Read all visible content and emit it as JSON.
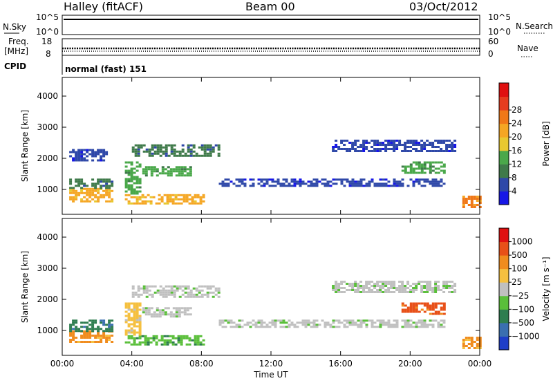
{
  "header": {
    "station": "Halley (fitACF)",
    "beam": "Beam 00",
    "date": "03/Oct/2012"
  },
  "strip": {
    "nsky_label": "N.Sky",
    "nsearch_label": "N.Search",
    "freq_label": "Freq.",
    "freq_unit": "[MHz]",
    "nave_label": "Nave",
    "cpid_label": "CPID",
    "cpid_value": "normal (fast) 151",
    "noise_ticks_left": [
      "10^5",
      "10^0"
    ],
    "noise_ticks_right": [
      "10^5",
      "10^0"
    ],
    "freq_ticks": [
      "18",
      "8"
    ],
    "nave_ticks": [
      "60",
      "0"
    ]
  },
  "chart_data": [
    {
      "type": "heatmap",
      "panel": "power",
      "ylabel": "Slant Range [km]",
      "ylim": [
        200,
        4600
      ],
      "yticks": [
        1000,
        2000,
        3000,
        4000
      ],
      "xlim": [
        0,
        24
      ],
      "colorbar": {
        "label": "Power [dB]",
        "ticks": [
          4,
          8,
          12,
          16,
          20,
          24,
          28
        ],
        "colors": [
          "#1717e6",
          "#2f48a8",
          "#3f7a4a",
          "#4aa84a",
          "#e8c830",
          "#f5a623",
          "#f07818",
          "#e63c1e",
          "#e01010"
        ]
      },
      "bands": [
        {
          "t0": 0.4,
          "t1": 2.8,
          "r0": 600,
          "r1": 1050,
          "level": 24
        },
        {
          "t0": 0.4,
          "t1": 2.8,
          "r0": 1050,
          "r1": 1350,
          "level": 12
        },
        {
          "t0": 3.6,
          "t1": 8.2,
          "r0": 550,
          "r1": 850,
          "level": 22
        },
        {
          "t0": 3.6,
          "t1": 4.4,
          "r0": 850,
          "r1": 1900,
          "level": 14
        },
        {
          "t0": 4.6,
          "t1": 7.4,
          "r0": 1450,
          "r1": 1750,
          "level": 14
        },
        {
          "t0": 4.0,
          "t1": 9.0,
          "r0": 2050,
          "r1": 2450,
          "level": 12
        },
        {
          "t0": 0.4,
          "t1": 2.6,
          "r0": 1950,
          "r1": 2300,
          "level": 6
        },
        {
          "t0": 9.0,
          "t1": 22.0,
          "r0": 1100,
          "r1": 1350,
          "level": 9
        },
        {
          "t0": 15.5,
          "t1": 22.5,
          "r0": 2200,
          "r1": 2600,
          "level": 6
        },
        {
          "t0": 19.5,
          "t1": 22.0,
          "r0": 1550,
          "r1": 1900,
          "level": 15
        },
        {
          "t0": 23.0,
          "t1": 24.0,
          "r0": 450,
          "r1": 800,
          "level": 26
        }
      ]
    },
    {
      "type": "heatmap",
      "panel": "velocity",
      "ylabel": "Slant Range [km]",
      "ylim": [
        200,
        4600
      ],
      "yticks": [
        1000,
        2000,
        3000,
        4000
      ],
      "xlim": [
        0,
        24
      ],
      "xticks": [
        "00:00",
        "04:00",
        "08:00",
        "12:00",
        "16:00",
        "20:00",
        "00:00"
      ],
      "xlabel": "Time UT",
      "colorbar": {
        "label": "Velocity [m s⁻¹]",
        "ticks": [
          "1000",
          "500",
          "100",
          "25",
          "−25",
          "−100",
          "−500",
          "−1000"
        ],
        "colors": [
          "#1e3ec8",
          "#3a6fb0",
          "#2e7d4f",
          "#5abf3a",
          "#c0c0c0",
          "#f5c040",
          "#f08c1e",
          "#e85018",
          "#e01010"
        ]
      },
      "bands": [
        {
          "t0": 0.4,
          "t1": 2.8,
          "r0": 600,
          "r1": 1000,
          "level": 6
        },
        {
          "t0": 0.4,
          "t1": 2.8,
          "r0": 1000,
          "r1": 1350,
          "level": 2
        },
        {
          "t0": 3.6,
          "t1": 8.2,
          "r0": 550,
          "r1": 850,
          "level": 3
        },
        {
          "t0": 3.6,
          "t1": 4.4,
          "r0": 850,
          "r1": 1900,
          "level": 5
        },
        {
          "t0": 4.6,
          "t1": 7.4,
          "r0": 1450,
          "r1": 1750,
          "level": 4
        },
        {
          "t0": 4.0,
          "t1": 9.0,
          "r0": 2050,
          "r1": 2450,
          "level": 4
        },
        {
          "t0": 9.0,
          "t1": 22.0,
          "r0": 1100,
          "r1": 1350,
          "level": 4
        },
        {
          "t0": 15.5,
          "t1": 22.5,
          "r0": 2200,
          "r1": 2600,
          "level": 4
        },
        {
          "t0": 19.5,
          "t1": 22.0,
          "r0": 1550,
          "r1": 1900,
          "level": 7
        },
        {
          "t0": 23.0,
          "t1": 24.0,
          "r0": 450,
          "r1": 800,
          "level": 6
        }
      ]
    }
  ]
}
